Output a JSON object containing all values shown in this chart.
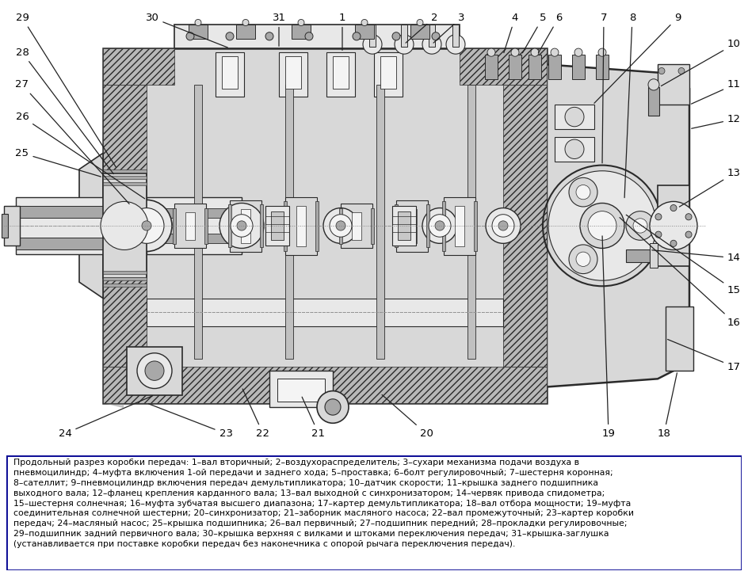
{
  "bg_color": "#ffffff",
  "border_color": "#000080",
  "text_color": "#000000",
  "legend_text": "Продольный разрез коробки передач: 1–вал вторичный; 2–воздухораспределитель; 3–сухари механизма подачи воздуха в\nпневмоцилиндр; 4–муфта включения 1-ой передачи и заднего хода; 5–проставка; 6–болт регулировочный; 7–шестерня коронная;\n8–сателлит; 9–пневмоцилиндр включения передач демультипликатора; 10–датчик скорости; 11–крышка заднего подшипника\nвыходного вала; 12–фланец крепления карданного вала; 13–вал выходной с синхронизатором; 14–червяк привода спидометра;\n15–шестерня солнечная; 16–муфта зубчатая высшего диапазона; 17–картер демультипликатора; 18–вал отбора мощности; 19–муфта\nсоединительная солнечной шестерни; 20–синхронизатор; 21–заборник масляного насоса; 22–вал промежуточный; 23–картер коробки\nпередач; 24–масляный насос; 25–крышка подшипника; 26–вал первичный; 27–подшипник передний; 28–прокладки регулировочные;\n29–подшипник задний первичного вала; 30–крышка верхняя с вилками и штоками переключения передач; 31–крышка-заглушка\n(устанавливается при поставке коробки передач без наконечника с опорой рычага переключения передач).",
  "legend_fontsize": 7.8,
  "label_fontsize": 9.5,
  "diagram_image_url": ""
}
